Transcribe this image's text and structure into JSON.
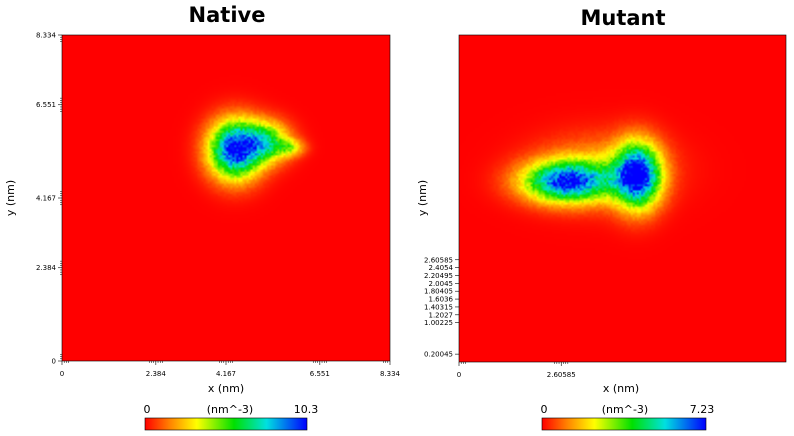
{
  "chart_data": [
    {
      "type": "heatmap",
      "title": "Native",
      "xlabel": "x (nm)",
      "ylabel": "y (nm)",
      "xlim": [
        0,
        8.334
      ],
      "ylim": [
        0,
        8.334
      ],
      "x_ticks": [
        {
          "value": 0,
          "label": "0"
        },
        {
          "value": 2.384,
          "label": "2.384"
        },
        {
          "value": 4.167,
          "label": "4.167"
        },
        {
          "value": 6.551,
          "label": "6.551"
        },
        {
          "value": 8.334,
          "label": "8.334"
        }
      ],
      "y_ticks": [
        {
          "value": 0,
          "label": "0"
        },
        {
          "value": 2.384,
          "label": "2.384"
        },
        {
          "value": 4.167,
          "label": "4.167"
        },
        {
          "value": 6.551,
          "label": "6.551"
        },
        {
          "value": 8.334,
          "label": "8.334"
        }
      ],
      "colorbar": {
        "min": 0,
        "max": 10.3,
        "min_label": "0",
        "max_label": "10.3",
        "unit": "(nm^-3)"
      },
      "background_value": 0,
      "blobs": [
        {
          "x": 4.4,
          "y": 5.4,
          "sx": 0.45,
          "sy": 0.5,
          "peak": 1.0
        },
        {
          "x": 5.2,
          "y": 5.6,
          "sx": 0.4,
          "sy": 0.35,
          "peak": 0.55
        },
        {
          "x": 5.8,
          "y": 5.45,
          "sx": 0.25,
          "sy": 0.15,
          "peak": 0.28
        }
      ]
    },
    {
      "type": "heatmap",
      "title": "Mutant",
      "xlabel": "x (nm)",
      "ylabel": "y (nm)",
      "xlim": [
        0,
        8.334
      ],
      "ylim": [
        0,
        8.334
      ],
      "x_ticks": [
        {
          "value": 0,
          "label": "0"
        },
        {
          "value": 2.60585,
          "label": "2.60585"
        }
      ],
      "y_ticks": [
        {
          "value": 0.20045,
          "label": "0.20045"
        },
        {
          "value": 1.00225,
          "label": "1.00225"
        },
        {
          "value": 1.2027,
          "label": "1.2027"
        },
        {
          "value": 1.40315,
          "label": "1.40315"
        },
        {
          "value": 1.6036,
          "label": "1.6036"
        },
        {
          "value": 1.80405,
          "label": "1.80405"
        },
        {
          "value": 2.0045,
          "label": "2.0045"
        },
        {
          "value": 2.20495,
          "label": "2.20495"
        },
        {
          "value": 2.4054,
          "label": "2.4054"
        },
        {
          "value": 2.60585,
          "label": "2.60585"
        }
      ],
      "colorbar": {
        "min": 0,
        "max": 7.23,
        "min_label": "0",
        "max_label": "7.23",
        "unit": "(nm^-3)"
      },
      "background_value": 0,
      "blobs": [
        {
          "x": 2.75,
          "y": 4.6,
          "sx": 0.75,
          "sy": 0.35,
          "peak": 0.9
        },
        {
          "x": 4.55,
          "y": 4.75,
          "sx": 0.4,
          "sy": 0.55,
          "peak": 1.0
        },
        {
          "x": 3.6,
          "y": 4.9,
          "sx": 1.1,
          "sy": 0.6,
          "peak": 0.2
        }
      ]
    }
  ]
}
